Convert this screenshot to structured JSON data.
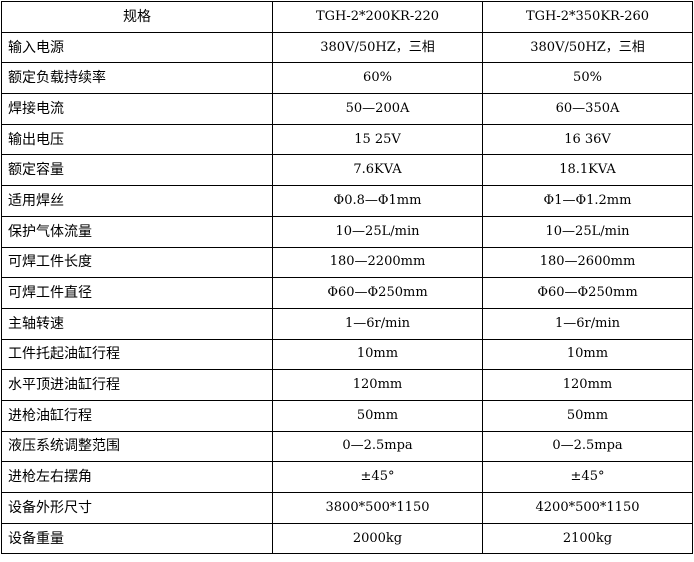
{
  "header": {
    "label": "规格",
    "models": [
      "TGH-2*200KR-220",
      "TGH-2*350KR-260"
    ]
  },
  "rows": [
    {
      "label": "输入电源",
      "values": [
        "380V/50HZ，三相",
        "380V/50HZ，三相"
      ]
    },
    {
      "label": "额定负载持续率",
      "values": [
        "60%",
        "50%"
      ]
    },
    {
      "label": "焊接电流",
      "values": [
        "50—200A",
        "60—350A"
      ]
    },
    {
      "label": "输出电压",
      "values": [
        "15  25V",
        "16  36V"
      ]
    },
    {
      "label": "额定容量",
      "values": [
        "7.6KVA",
        "18.1KVA"
      ]
    },
    {
      "label": "适用焊丝",
      "values": [
        "Φ0.8—Φ1mm",
        "Φ1—Φ1.2mm"
      ]
    },
    {
      "label": "保护气体流量",
      "values": [
        "10—25L/min",
        "10—25L/min"
      ]
    },
    {
      "label": "可焊工件长度",
      "values": [
        "180—2200mm",
        "180—2600mm"
      ]
    },
    {
      "label": "可焊工件直径",
      "values": [
        "Φ60—Φ250mm",
        "Φ60—Φ250mm"
      ]
    },
    {
      "label": "主轴转速",
      "values": [
        "1—6r/min",
        "1—6r/min"
      ]
    },
    {
      "label": "工件托起油缸行程",
      "values": [
        "10mm",
        "10mm"
      ]
    },
    {
      "label": "水平顶进油缸行程",
      "values": [
        "120mm",
        "120mm"
      ]
    },
    {
      "label": "进枪油缸行程",
      "values": [
        "50mm",
        "50mm"
      ]
    },
    {
      "label": "液压系统调整范围",
      "values": [
        "0—2.5mpa",
        "0—2.5mpa"
      ]
    },
    {
      "label": "进枪左右摆角",
      "values": [
        "±45°",
        "±45°"
      ]
    },
    {
      "label": "设备外形尺寸",
      "values": [
        "3800*500*1150",
        "4200*500*1150"
      ]
    },
    {
      "label": "设备重量",
      "values": [
        "2000kg",
        "2100kg"
      ]
    }
  ]
}
